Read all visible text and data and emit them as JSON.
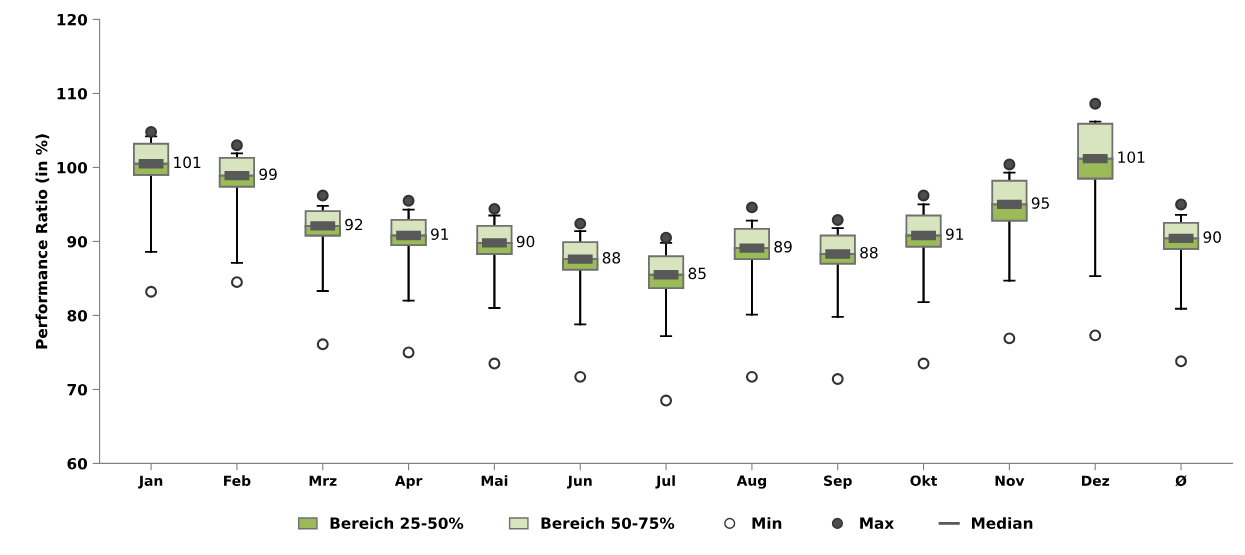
{
  "chart_data": {
    "type": "box",
    "ylabel": "Performance Ratio (in %)",
    "categories": [
      "Jan",
      "Feb",
      "Mrz",
      "Apr",
      "Mai",
      "Jun",
      "Jul",
      "Aug",
      "Sep",
      "Okt",
      "Nov",
      "Dez",
      "Ø"
    ],
    "ylim": [
      60,
      120
    ],
    "yticks": [
      60,
      70,
      80,
      90,
      100,
      110,
      120
    ],
    "grid": false,
    "legend": "bottom",
    "series": [
      {
        "name": "Bereich 25-50%",
        "type": "box",
        "color": "#9bbb59",
        "boxes": [
          {
            "low": 88.6,
            "q1": 99.0,
            "median": 100.5,
            "q3": 103.2,
            "high": 104.2
          },
          {
            "low": 87.1,
            "q1": 97.4,
            "median": 98.9,
            "q3": 101.3,
            "high": 101.9
          },
          {
            "low": 83.3,
            "q1": 90.8,
            "median": 92.1,
            "q3": 94.1,
            "high": 94.8
          },
          {
            "low": 82.0,
            "q1": 89.5,
            "median": 90.8,
            "q3": 92.9,
            "high": 94.3
          },
          {
            "low": 81.0,
            "q1": 88.3,
            "median": 89.8,
            "q3": 92.1,
            "high": 93.5
          },
          {
            "low": 78.8,
            "q1": 86.2,
            "median": 87.6,
            "q3": 89.9,
            "high": 91.4
          },
          {
            "low": 77.2,
            "q1": 83.7,
            "median": 85.5,
            "q3": 88.0,
            "high": 89.8
          },
          {
            "low": 80.1,
            "q1": 87.6,
            "median": 89.1,
            "q3": 91.7,
            "high": 92.8
          },
          {
            "low": 79.8,
            "q1": 87.0,
            "median": 88.3,
            "q3": 90.8,
            "high": 91.8
          },
          {
            "low": 81.8,
            "q1": 89.3,
            "median": 90.8,
            "q3": 93.5,
            "high": 95.0
          },
          {
            "low": 84.7,
            "q1": 92.8,
            "median": 95.0,
            "q3": 98.2,
            "high": 99.3
          },
          {
            "low": 85.3,
            "q1": 98.5,
            "median": 101.2,
            "q3": 105.9,
            "high": 106.2
          },
          {
            "low": 80.9,
            "q1": 89.0,
            "median": 90.4,
            "q3": 92.5,
            "high": 93.6
          }
        ]
      },
      {
        "name": "Bereich 50-75%",
        "type": "box",
        "color": "#d7e4bd",
        "boxes": [
          {
            "low": 88.6,
            "q1": 99.0,
            "median": 100.5,
            "q3": 103.2,
            "high": 104.2
          },
          {
            "low": 87.1,
            "q1": 97.4,
            "median": 98.9,
            "q3": 101.3,
            "high": 101.9
          },
          {
            "low": 83.3,
            "q1": 90.8,
            "median": 92.1,
            "q3": 94.1,
            "high": 94.8
          },
          {
            "low": 82.0,
            "q1": 89.5,
            "median": 90.8,
            "q3": 92.9,
            "high": 94.3
          },
          {
            "low": 81.0,
            "q1": 88.3,
            "median": 89.8,
            "q3": 92.1,
            "high": 93.5
          },
          {
            "low": 78.8,
            "q1": 86.2,
            "median": 87.6,
            "q3": 89.9,
            "high": 91.4
          },
          {
            "low": 77.2,
            "q1": 83.7,
            "median": 85.5,
            "q3": 88.0,
            "high": 89.8
          },
          {
            "low": 80.1,
            "q1": 87.6,
            "median": 89.1,
            "q3": 91.7,
            "high": 92.8
          },
          {
            "low": 79.8,
            "q1": 87.0,
            "median": 88.3,
            "q3": 90.8,
            "high": 91.8
          },
          {
            "low": 81.8,
            "q1": 89.3,
            "median": 90.8,
            "q3": 93.5,
            "high": 95.0
          },
          {
            "low": 84.7,
            "q1": 92.8,
            "median": 95.0,
            "q3": 98.2,
            "high": 99.3
          },
          {
            "low": 85.3,
            "q1": 98.5,
            "median": 101.2,
            "q3": 105.9,
            "high": 106.2
          },
          {
            "low": 80.9,
            "q1": 89.0,
            "median": 90.4,
            "q3": 92.5,
            "high": 93.6
          }
        ]
      },
      {
        "name": "Min",
        "type": "scatter",
        "color": "#ffffff",
        "x": [
          "Jan",
          "Feb",
          "Mrz",
          "Apr",
          "Mai",
          "Jun",
          "Jul",
          "Aug",
          "Sep",
          "Okt",
          "Nov",
          "Dez",
          "Ø"
        ],
        "values": [
          83.2,
          84.5,
          76.1,
          75.0,
          73.5,
          71.7,
          68.5,
          71.7,
          71.4,
          73.5,
          76.9,
          77.3,
          73.8
        ]
      },
      {
        "name": "Max",
        "type": "scatter",
        "color": "#4d4d4d",
        "x": [
          "Jan",
          "Feb",
          "Mrz",
          "Apr",
          "Mai",
          "Jun",
          "Jul",
          "Aug",
          "Sep",
          "Okt",
          "Nov",
          "Dez",
          "Ø"
        ],
        "values": [
          104.8,
          103.0,
          96.2,
          95.5,
          94.4,
          92.4,
          90.5,
          94.6,
          92.9,
          96.2,
          100.4,
          108.6,
          95.0
        ]
      },
      {
        "name": "Median",
        "type": "scatter",
        "color": "#595959",
        "values": [
          100.5,
          98.9,
          92.1,
          90.8,
          89.8,
          87.6,
          85.5,
          89.1,
          88.3,
          90.8,
          95.0,
          101.2,
          90.4
        ]
      }
    ],
    "annotations": [
      {
        "text": "101",
        "x": "Jan",
        "y": 100.5
      },
      {
        "text": "99",
        "x": "Feb",
        "y": 98.9
      },
      {
        "text": "92",
        "x": "Mrz",
        "y": 92.1
      },
      {
        "text": "91",
        "x": "Apr",
        "y": 90.8
      },
      {
        "text": "90",
        "x": "Mai",
        "y": 89.8
      },
      {
        "text": "88",
        "x": "Jun",
        "y": 87.6
      },
      {
        "text": "85",
        "x": "Jul",
        "y": 85.5
      },
      {
        "text": "89",
        "x": "Aug",
        "y": 89.1
      },
      {
        "text": "88",
        "x": "Sep",
        "y": 88.3
      },
      {
        "text": "91",
        "x": "Okt",
        "y": 90.8
      },
      {
        "text": "95",
        "x": "Nov",
        "y": 95.0
      },
      {
        "text": "101",
        "x": "Dez",
        "y": 101.2
      },
      {
        "text": "90",
        "x": "Ø",
        "y": 90.4
      }
    ]
  }
}
